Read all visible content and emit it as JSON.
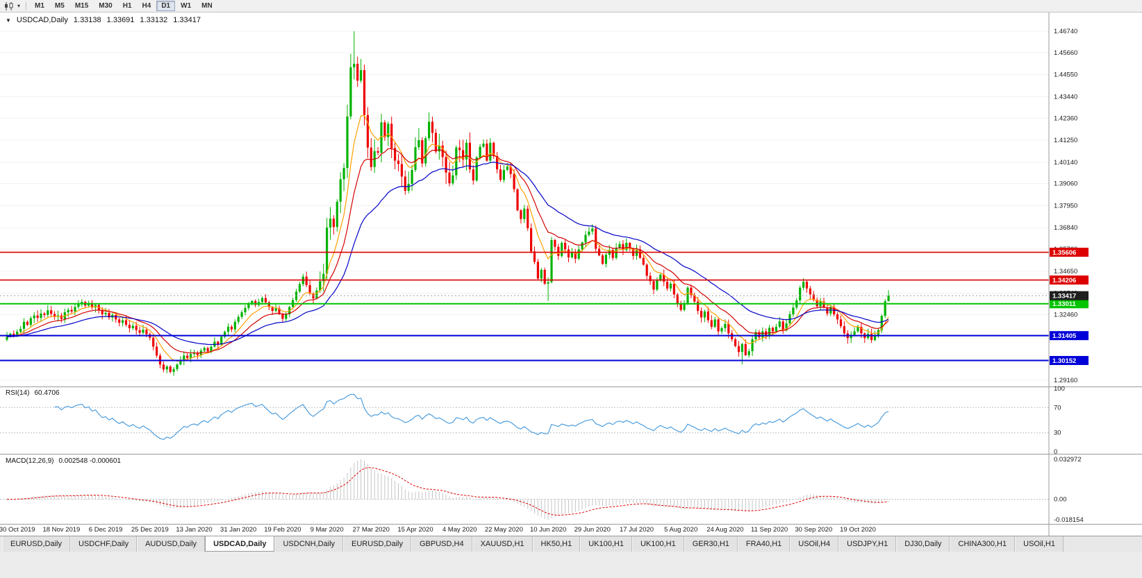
{
  "toolbar": {
    "timeframes": [
      "M1",
      "M5",
      "M15",
      "M30",
      "H1",
      "H4",
      "D1",
      "W1",
      "MN"
    ],
    "active_timeframe": "D1",
    "chart_icon": "candlestick-chart-icon",
    "dropdown_icon": "chevron-down-icon"
  },
  "header": {
    "symbol_title": "USDCAD,Daily",
    "ohlc": {
      "open": "1.33138",
      "high": "1.33691",
      "low": "1.33132",
      "close": "1.33417"
    }
  },
  "indicators": {
    "rsi": {
      "label": "RSI(14)",
      "value": "60.4706",
      "range": [
        0,
        100
      ],
      "levels": [
        70,
        30
      ],
      "ticks": [
        "100",
        "70",
        "30",
        "0"
      ],
      "line_color": "#3e96dc"
    },
    "macd": {
      "label": "MACD(12,26,9)",
      "values_text": "0.002548 -0.000601",
      "range": [
        -0.018154,
        0.032972
      ],
      "ticks": [
        {
          "label": "0.032972",
          "value": 0.032972
        },
        {
          "label": "0.00",
          "value": 0
        },
        {
          "label": "-0.018154",
          "value": -0.018154
        }
      ],
      "signal_color": "#e00000",
      "histogram_color": "#c4c4c4"
    }
  },
  "chart_data": {
    "type": "candlestick",
    "symbol": "USDCAD",
    "timeframe": "Daily",
    "title": "USDCAD,Daily 1.33138 1.33691 1.33132 1.33417",
    "x_labels": [
      "30 Oct 2019",
      "18 Nov 2019",
      "6 Dec 2019",
      "25 Dec 2019",
      "13 Jan 2020",
      "31 Jan 2020",
      "19 Feb 2020",
      "9 Mar 2020",
      "27 Mar 2020",
      "15 Apr 2020",
      "4 May 2020",
      "22 May 2020",
      "10 Jun 2020",
      "29 Jun 2020",
      "17 Jul 2020",
      "5 Aug 2020",
      "24 Aug 2020",
      "11 Sep 2020",
      "30 Sep 2020",
      "19 Oct 2020"
    ],
    "x_label_indices": [
      3,
      16,
      29,
      42,
      55,
      68,
      81,
      94,
      107,
      120,
      133,
      146,
      159,
      172,
      185,
      198,
      211,
      224,
      237,
      250
    ],
    "y_ticks": [
      "1.46740",
      "1.45660",
      "1.44550",
      "1.43440",
      "1.42360",
      "1.41250",
      "1.40140",
      "1.39060",
      "1.37950",
      "1.36840",
      "1.35760",
      "1.34650",
      "1.33540",
      "1.32460",
      "1.31350",
      "1.30240",
      "1.29160"
    ],
    "price_range": {
      "min": 1.28877,
      "max": 1.47615
    },
    "first_open": 1.312,
    "closes": [
      1.3135,
      1.315,
      1.3142,
      1.316,
      1.3175,
      1.321,
      1.3195,
      1.3228,
      1.3242,
      1.323,
      1.3252,
      1.3245,
      1.3268,
      1.325,
      1.3238,
      1.3242,
      1.3225,
      1.3258,
      1.327,
      1.3262,
      1.3285,
      1.33,
      1.331,
      1.3292,
      1.3305,
      1.3282,
      1.3295,
      1.327,
      1.3248,
      1.3255,
      1.3232,
      1.3245,
      1.3222,
      1.3205,
      1.3218,
      1.3195,
      1.3178,
      1.319,
      1.3168,
      1.3155,
      1.317,
      1.3148,
      1.313,
      1.3085,
      1.304,
      1.2995,
      1.297,
      1.2985,
      1.2958,
      1.2972,
      1.2995,
      1.3015,
      1.304,
      1.3028,
      1.3048,
      1.3055,
      1.3042,
      1.3065,
      1.3078,
      1.3062,
      1.3085,
      1.311,
      1.3095,
      1.3135,
      1.316,
      1.3185,
      1.3172,
      1.321,
      1.3235,
      1.3258,
      1.328,
      1.3302,
      1.3315,
      1.3295,
      1.331,
      1.333,
      1.3308,
      1.3285,
      1.3265,
      1.3278,
      1.325,
      1.3225,
      1.3248,
      1.3285,
      1.332,
      1.3362,
      1.34,
      1.3438,
      1.3395,
      1.3352,
      1.3328,
      1.3368,
      1.3415,
      1.3452,
      1.3685,
      1.373,
      1.3688,
      1.3815,
      1.3928,
      1.3985,
      1.4245,
      1.4492,
      1.451,
      1.4425,
      1.4478,
      1.4252,
      1.4088,
      1.399,
      1.407,
      1.4062,
      1.4215,
      1.414,
      1.4208,
      1.4085,
      1.4022,
      1.4005,
      1.3942,
      1.387,
      1.3905,
      1.3975,
      1.409,
      1.4125,
      1.4008,
      1.4135,
      1.4218,
      1.4162,
      1.4068,
      1.4098,
      1.404,
      1.3962,
      1.3908,
      1.3948,
      1.4088,
      1.4075,
      1.4028,
      1.4112,
      1.3978,
      1.3922,
      1.4038,
      1.4092,
      1.4108,
      1.4022,
      1.4112,
      1.4045,
      1.3978,
      1.3925,
      1.3975,
      1.3992,
      1.3955,
      1.3878,
      1.3772,
      1.3728,
      1.378,
      1.3682,
      1.3565,
      1.3512,
      1.3428,
      1.3472,
      1.3402,
      1.341,
      1.3622,
      1.3588,
      1.3542,
      1.3608,
      1.3575,
      1.3535,
      1.3562,
      1.3528,
      1.3575,
      1.361,
      1.3648,
      1.3665,
      1.368,
      1.3578,
      1.3545,
      1.3502,
      1.3548,
      1.3572,
      1.3532,
      1.3582,
      1.3602,
      1.3572,
      1.3608,
      1.3578,
      1.3542,
      1.3575,
      1.3532,
      1.3498,
      1.3442,
      1.3415,
      1.3372,
      1.3418,
      1.3448,
      1.3412,
      1.3378,
      1.3402,
      1.3348,
      1.3302,
      1.327,
      1.3302,
      1.3382,
      1.3345,
      1.3312,
      1.3265,
      1.3232,
      1.3262,
      1.3218,
      1.3185,
      1.3222,
      1.3162,
      1.3178,
      1.32,
      1.3152,
      1.3122,
      1.3088,
      1.3058,
      1.3098,
      1.3042,
      1.3062,
      1.3122,
      1.3158,
      1.3132,
      1.3162,
      1.3142,
      1.318,
      1.3162,
      1.3185,
      1.3212,
      1.3168,
      1.3202,
      1.3248,
      1.3282,
      1.3318,
      1.3382,
      1.3412,
      1.3378,
      1.3348,
      1.332,
      1.3288,
      1.3312,
      1.3282,
      1.3252,
      1.3285,
      1.3248,
      1.3222,
      1.3188,
      1.3152,
      1.3128,
      1.3145,
      1.3162,
      1.3185,
      1.3152,
      1.3128,
      1.315,
      1.3118,
      1.3142,
      1.3168,
      1.324,
      1.33138,
      1.33417
    ],
    "wick_overrides": {
      "48": {
        "low": 1.295
      },
      "101": {
        "high": 1.456
      },
      "102": {
        "high": 1.4674
      },
      "124": {
        "high": 1.4265
      },
      "159": {
        "low": 1.3315
      },
      "216": {
        "low": 1.2995
      },
      "247": {
        "low": 1.31
      },
      "259": {
        "high": 1.33691,
        "low": 1.33132
      }
    },
    "hlines": [
      {
        "price": 1.35606,
        "label": "1.35606",
        "color": "#dd0000",
        "width": 1.6
      },
      {
        "price": 1.34206,
        "label": "1.34206",
        "color": "#dd0000",
        "width": 1.6
      },
      {
        "price": 1.33011,
        "label": "1.33011",
        "color": "#00c400",
        "width": 2
      },
      {
        "price": 1.31405,
        "label": "1.31405",
        "color": "#0000d8",
        "width": 2
      },
      {
        "price": 1.30152,
        "label": "1.30152",
        "color": "#0000d8",
        "width": 2
      }
    ],
    "current_price": {
      "value": 1.33417,
      "label": "1.33417",
      "color": "#1f1f1f"
    },
    "moving_averages": [
      {
        "name": "fast",
        "period": 8,
        "type": "ema",
        "color": "#ffa000"
      },
      {
        "name": "medium",
        "period": 16,
        "type": "ema",
        "color": "#d40000"
      },
      {
        "name": "slow",
        "period": 34,
        "type": "ema",
        "color": "#0000c8"
      }
    ],
    "colors": {
      "up": "#00b200",
      "down": "#ee0000",
      "grid": "#f1f1f1",
      "axis_text": "#1a1a1a"
    }
  },
  "tabs": {
    "items": [
      "EURUSD,Daily",
      "USDCHF,Daily",
      "AUDUSD,Daily",
      "USDCAD,Daily",
      "USDCNH,Daily",
      "EURUSD,Daily",
      "GBPUSD,H4",
      "XAUUSD,H1",
      "HK50,H1",
      "UK100,H1",
      "UK100,H1",
      "GER30,H1",
      "FRA40,H1",
      "USOil,H4",
      "USDJPY,H1",
      "DJ30,Daily",
      "CHINA300,H1",
      "USOil,H1"
    ],
    "active_index": 3
  }
}
